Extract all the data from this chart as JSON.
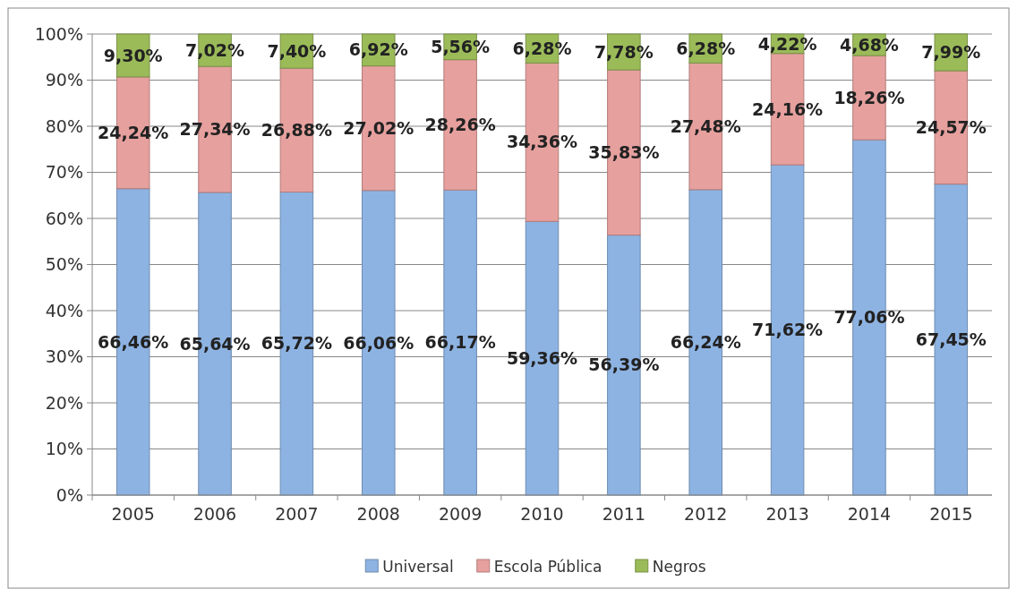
{
  "chart_data": {
    "type": "bar",
    "stacked": true,
    "categories": [
      "2005",
      "2006",
      "2007",
      "2008",
      "2009",
      "2010",
      "2011",
      "2012",
      "2013",
      "2014",
      "2015"
    ],
    "series": [
      {
        "name": "Universal",
        "color": "#8db3e2",
        "values": [
          66.46,
          65.64,
          65.72,
          66.06,
          66.17,
          59.36,
          56.39,
          66.24,
          71.62,
          77.06,
          67.45
        ],
        "value_labels": [
          "66,46%",
          "65,64%",
          "65,72%",
          "66,06%",
          "66,17%",
          "59,36%",
          "56,39%",
          "66,24%",
          "71,62%",
          "77,06%",
          "67,45%"
        ]
      },
      {
        "name": "Escola Pública",
        "color": "#e6a09e",
        "values": [
          24.24,
          27.34,
          26.88,
          27.02,
          28.26,
          34.36,
          35.83,
          27.48,
          24.16,
          18.26,
          24.57
        ],
        "value_labels": [
          "24,24%",
          "27,34%",
          "26,88%",
          "27,02%",
          "28,26%",
          "34,36%",
          "35,83%",
          "27,48%",
          "24,16%",
          "18,26%",
          "24,57%"
        ]
      },
      {
        "name": "Negros",
        "color": "#9bbb59",
        "values": [
          9.3,
          7.02,
          7.4,
          6.92,
          5.56,
          6.28,
          7.78,
          6.28,
          4.22,
          4.68,
          7.99
        ],
        "value_labels": [
          "9,30%",
          "7,02%",
          "7,40%",
          "6,92%",
          "5,56%",
          "6,28%",
          "7,78%",
          "6,28%",
          "4,22%",
          "4,68%",
          "7,99%"
        ]
      }
    ],
    "ylim": [
      0,
      100
    ],
    "yticks": [
      {
        "value": 0,
        "label": "0%"
      },
      {
        "value": 10,
        "label": "10%"
      },
      {
        "value": 20,
        "label": "20%"
      },
      {
        "value": 30,
        "label": "30%"
      },
      {
        "value": 40,
        "label": "40%"
      },
      {
        "value": 50,
        "label": "50%"
      },
      {
        "value": 60,
        "label": "60%"
      },
      {
        "value": 70,
        "label": "70%"
      },
      {
        "value": 80,
        "label": "80%"
      },
      {
        "value": 90,
        "label": "90%"
      },
      {
        "value": 100,
        "label": "100%"
      }
    ],
    "grid": "y",
    "legend": "bottom"
  }
}
